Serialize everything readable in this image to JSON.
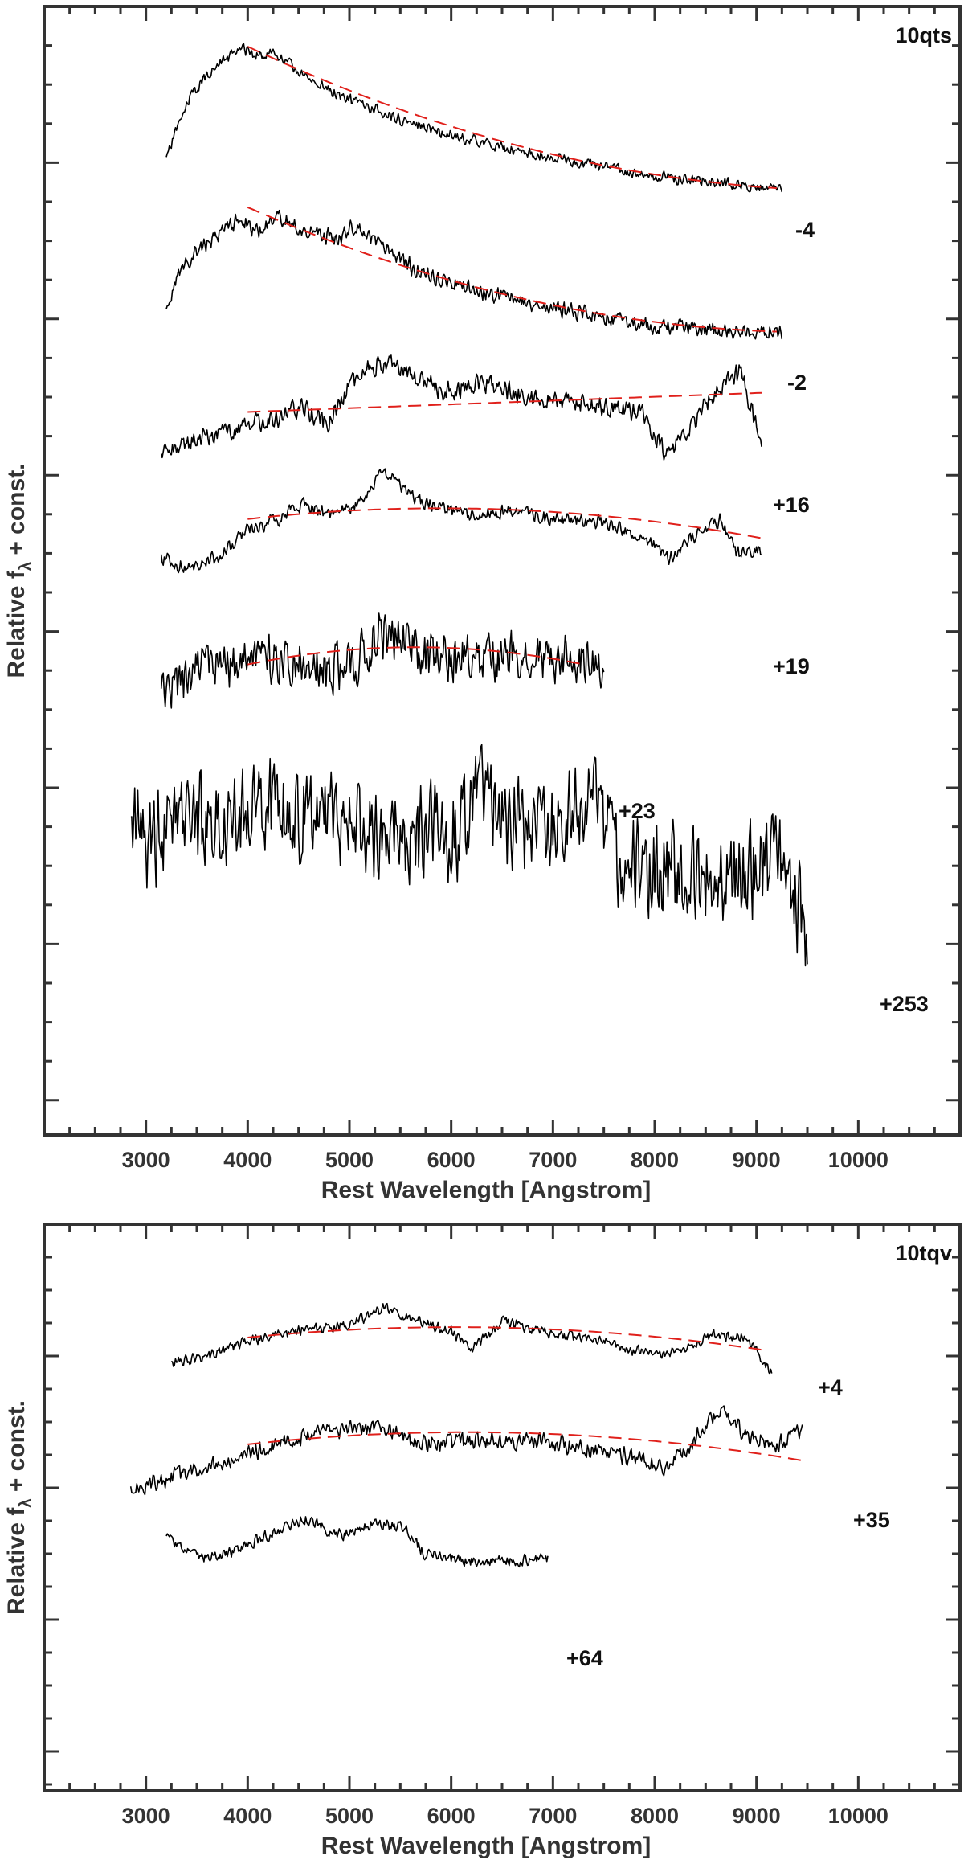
{
  "chart_data": [
    {
      "type": "line",
      "panel_name": "10qts",
      "xlabel": "Rest Wavelength [Angstrom]",
      "ylabel_main": "Relative f",
      "ylabel_sub": "λ",
      "ylabel_tail": " + const.",
      "xlim": [
        2000,
        11000
      ],
      "xticks": [
        3000,
        4000,
        5000,
        6000,
        7000,
        8000,
        9000,
        10000
      ],
      "xtick_labels": [
        "3000",
        "4000",
        "5000",
        "6000",
        "7000",
        "8000",
        "9000",
        "10000"
      ],
      "colors": {
        "spectrum": "#000000",
        "fit": "#e0201b"
      },
      "series": [
        {
          "label": "-4",
          "xmin": 3200,
          "xmax": 9250,
          "noise": 0.12,
          "seed": 11,
          "offset": 0,
          "shape": [
            [
              3200,
              3.0
            ],
            [
              3300,
              2.2
            ],
            [
              3450,
              1.3
            ],
            [
              3600,
              0.8
            ],
            [
              3800,
              0.35
            ],
            [
              3950,
              0.1
            ],
            [
              4100,
              0.3
            ],
            [
              4250,
              0.2
            ],
            [
              4600,
              0.9
            ],
            [
              5000,
              1.45
            ],
            [
              5500,
              1.95
            ],
            [
              6000,
              2.35
            ],
            [
              6500,
              2.7
            ],
            [
              7000,
              2.95
            ],
            [
              7500,
              3.2
            ],
            [
              8000,
              3.45
            ],
            [
              8500,
              3.55
            ],
            [
              9000,
              3.7
            ],
            [
              9250,
              3.75
            ]
          ],
          "fit": [
            4000,
            9200,
            0.05,
            3.75,
            0.7
          ]
        },
        {
          "label": "-2",
          "xmin": 3200,
          "xmax": 9250,
          "noise": 0.18,
          "seed": 23,
          "offset": 4.2,
          "shape": [
            [
              3200,
              2.8
            ],
            [
              3300,
              1.9
            ],
            [
              3500,
              1.2
            ],
            [
              3700,
              0.8
            ],
            [
              3950,
              0.35
            ],
            [
              4100,
              0.7
            ],
            [
              4300,
              0.3
            ],
            [
              4600,
              0.7
            ],
            [
              4900,
              0.9
            ],
            [
              5050,
              0.5
            ],
            [
              5300,
              1.1
            ],
            [
              5800,
              1.9
            ],
            [
              6500,
              2.4
            ],
            [
              7000,
              2.7
            ],
            [
              7500,
              2.95
            ],
            [
              8000,
              3.15
            ],
            [
              8500,
              3.25
            ],
            [
              9000,
              3.3
            ],
            [
              9250,
              3.3
            ]
          ],
          "fit": [
            4000,
            9200,
            0.05,
            3.3,
            0.7
          ]
        },
        {
          "label": "+16",
          "xmin": 3150,
          "xmax": 9050,
          "noise": 0.22,
          "seed": 37,
          "offset": 8.0,
          "shape": [
            [
              3150,
              2.8
            ],
            [
              3400,
              2.4
            ],
            [
              3800,
              2.1
            ],
            [
              4200,
              1.8
            ],
            [
              4500,
              1.5
            ],
            [
              4800,
              1.9
            ],
            [
              5000,
              0.9
            ],
            [
              5200,
              0.4
            ],
            [
              5400,
              0.3
            ],
            [
              5700,
              0.8
            ],
            [
              6000,
              1.1
            ],
            [
              6300,
              0.8
            ],
            [
              6700,
              1.2
            ],
            [
              7200,
              1.3
            ],
            [
              7600,
              1.5
            ],
            [
              7900,
              1.7
            ],
            [
              8100,
              2.7
            ],
            [
              8300,
              2.3
            ],
            [
              8600,
              1.0
            ],
            [
              8850,
              0.6
            ],
            [
              9050,
              2.5
            ]
          ],
          "fit": [
            4000,
            9050,
            1.6,
            1.1,
            0
          ]
        },
        {
          "label": "+19",
          "xmin": 3150,
          "xmax": 9050,
          "noise": 0.15,
          "seed": 41,
          "offset": 12.0,
          "shape": [
            [
              3150,
              1.4
            ],
            [
              3400,
              1.7
            ],
            [
              3700,
              1.4
            ],
            [
              4000,
              0.7
            ],
            [
              4300,
              0.4
            ],
            [
              4550,
              0.0
            ],
            [
              4800,
              0.3
            ],
            [
              5100,
              0.0
            ],
            [
              5350,
              -0.9
            ],
            [
              5600,
              -0.2
            ],
            [
              5900,
              0.1
            ],
            [
              6200,
              0.3
            ],
            [
              6600,
              0.2
            ],
            [
              7000,
              0.4
            ],
            [
              7500,
              0.5
            ],
            [
              7900,
              0.9
            ],
            [
              8150,
              1.4
            ],
            [
              8400,
              0.8
            ],
            [
              8650,
              0.4
            ],
            [
              8800,
              1.3
            ],
            [
              9050,
              1.2
            ]
          ],
          "fit": [
            4000,
            9050,
            0.4,
            0.9,
            -0.5
          ]
        },
        {
          "label": "+23",
          "xmin": 3150,
          "xmax": 7500,
          "noise": 0.55,
          "seed": 53,
          "offset": 16.0,
          "shape": [
            [
              3150,
              1.1
            ],
            [
              3500,
              0.4
            ],
            [
              4000,
              0.0
            ],
            [
              4500,
              0.2
            ],
            [
              5000,
              0.3
            ],
            [
              5300,
              -0.6
            ],
            [
              5500,
              -0.5
            ],
            [
              5800,
              0.0
            ],
            [
              6300,
              0.1
            ],
            [
              6800,
              0.0
            ],
            [
              7200,
              0.0
            ],
            [
              7500,
              0.2
            ]
          ],
          "fit": [
            4000,
            7300,
            0.2,
            0.2,
            -0.45
          ]
        },
        {
          "label": "+253",
          "xmin": 2850,
          "xmax": 9500,
          "noise": 1.05,
          "seed": 67,
          "offset": 19.5,
          "shape": [
            [
              2850,
              1.2
            ],
            [
              3100,
              1.4
            ],
            [
              3500,
              0.8
            ],
            [
              4200,
              0.4
            ],
            [
              5000,
              0.8
            ],
            [
              5600,
              1.2
            ],
            [
              6100,
              1.1
            ],
            [
              6300,
              -0.4
            ],
            [
              6400,
              0.7
            ],
            [
              6800,
              1.3
            ],
            [
              7200,
              0.5
            ],
            [
              7400,
              0.4
            ],
            [
              7700,
              2.0
            ],
            [
              8200,
              2.2
            ],
            [
              8800,
              2.2
            ],
            [
              9300,
              1.8
            ],
            [
              9500,
              4.0
            ]
          ],
          "fit": null
        }
      ],
      "ylim": [
        -1,
        28.5
      ]
    },
    {
      "type": "line",
      "panel_name": "10tqv",
      "xlabel": "Rest Wavelength [Angstrom]",
      "ylabel_main": "Relative f",
      "ylabel_sub": "λ",
      "ylabel_tail": " + const.",
      "xlim": [
        2000,
        11000
      ],
      "xticks": [
        3000,
        4000,
        5000,
        6000,
        7000,
        8000,
        9000,
        10000
      ],
      "xtick_labels": [
        "3000",
        "4000",
        "5000",
        "6000",
        "7000",
        "8000",
        "9000",
        "10000"
      ],
      "colors": {
        "spectrum": "#000000",
        "fit": "#e0201b"
      },
      "series": [
        {
          "label": "+4",
          "xmin": 3250,
          "xmax": 9150,
          "noise": 0.14,
          "seed": 79,
          "offset": 0,
          "shape": [
            [
              3250,
              1.3
            ],
            [
              3600,
              1.1
            ],
            [
              4000,
              0.6
            ],
            [
              4500,
              0.3
            ],
            [
              5000,
              0.1
            ],
            [
              5350,
              -0.4
            ],
            [
              5700,
              0.0
            ],
            [
              6000,
              0.3
            ],
            [
              6200,
              0.9
            ],
            [
              6500,
              0.0
            ],
            [
              7000,
              0.4
            ],
            [
              7500,
              0.6
            ],
            [
              7800,
              0.9
            ],
            [
              8200,
              1.0
            ],
            [
              8600,
              0.4
            ],
            [
              8900,
              0.5
            ],
            [
              9150,
              1.6
            ]
          ],
          "fit": [
            4000,
            9100,
            0.5,
            0.9,
            -0.5
          ]
        },
        {
          "label": "+35",
          "xmin": 2850,
          "xmax": 9450,
          "noise": 0.22,
          "seed": 83,
          "offset": 3.2,
          "shape": [
            [
              2850,
              2.0
            ],
            [
              3300,
              1.6
            ],
            [
              3800,
              1.1
            ],
            [
              4300,
              0.6
            ],
            [
              4700,
              0.2
            ],
            [
              5300,
              0.1
            ],
            [
              5700,
              0.6
            ],
            [
              6200,
              0.5
            ],
            [
              6800,
              0.5
            ],
            [
              7300,
              0.7
            ],
            [
              7800,
              1.0
            ],
            [
              8100,
              1.4
            ],
            [
              8300,
              0.8
            ],
            [
              8650,
              -0.6
            ],
            [
              8900,
              0.4
            ],
            [
              9200,
              0.6
            ],
            [
              9450,
              0.2
            ]
          ],
          "fit": [
            4000,
            9450,
            0.6,
            1.1,
            -0.6
          ]
        },
        {
          "label": "+64",
          "xmin": 3200,
          "xmax": 6950,
          "noise": 0.15,
          "seed": 97,
          "offset": 6.4,
          "shape": [
            [
              3200,
              0.3
            ],
            [
              3500,
              0.9
            ],
            [
              3800,
              0.8
            ],
            [
              4200,
              0.2
            ],
            [
              4550,
              -0.3
            ],
            [
              4900,
              0.2
            ],
            [
              5300,
              -0.2
            ],
            [
              5550,
              0.0
            ],
            [
              5750,
              0.8
            ],
            [
              6200,
              1.0
            ],
            [
              6600,
              1.0
            ],
            [
              6950,
              0.9
            ]
          ],
          "fit": null
        }
      ],
      "ylim": [
        -3.0,
        14.5
      ]
    }
  ]
}
